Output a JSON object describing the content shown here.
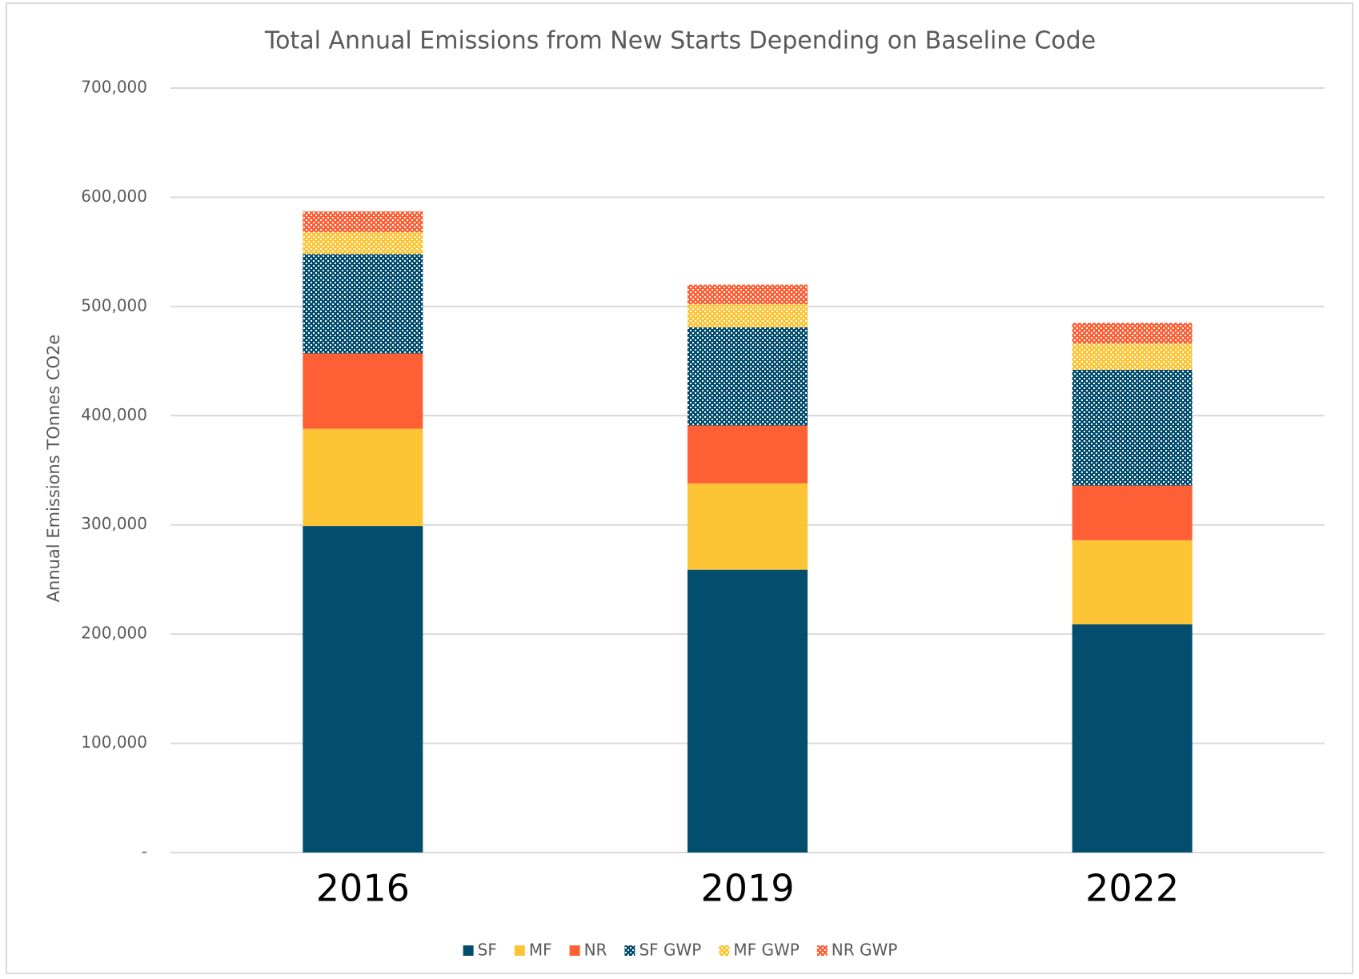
{
  "chart_data": {
    "type": "stacked_bar",
    "title": "Total Annual Emissions from New Starts Depending on Baseline Code",
    "y_label": "Annual Emissions TOnnes CO2e",
    "categories": [
      "2016",
      "2019",
      "2022"
    ],
    "series": [
      {
        "name": "SF",
        "color": "#034e6e",
        "pattern": false,
        "values": [
          299000,
          259000,
          209000
        ]
      },
      {
        "name": "MF",
        "color": "#fdc536",
        "pattern": false,
        "values": [
          89000,
          79000,
          77000
        ]
      },
      {
        "name": "NR",
        "color": "#fe5f35",
        "pattern": false,
        "values": [
          69000,
          53000,
          50000
        ]
      },
      {
        "name": "SF GWP",
        "color": "#034e6e",
        "pattern": true,
        "values": [
          91000,
          90000,
          106000
        ]
      },
      {
        "name": "MF GWP",
        "color": "#fdc536",
        "pattern": true,
        "values": [
          20000,
          21000,
          24000
        ]
      },
      {
        "name": "NR GWP",
        "color": "#fe5f35",
        "pattern": true,
        "values": [
          19000,
          18000,
          19000
        ]
      }
    ],
    "ylim": [
      0,
      700000
    ],
    "yticks": [
      {
        "value": 0,
        "label": "-"
      },
      {
        "value": 100000,
        "label": "100,000"
      },
      {
        "value": 200000,
        "label": "200,000"
      },
      {
        "value": 300000,
        "label": "300,000"
      },
      {
        "value": 400000,
        "label": "400,000"
      },
      {
        "value": 500000,
        "label": "500,000"
      },
      {
        "value": 600000,
        "label": "600,000"
      },
      {
        "value": 700000,
        "label": "700,000"
      }
    ],
    "grid": true,
    "legend": "bottom"
  }
}
